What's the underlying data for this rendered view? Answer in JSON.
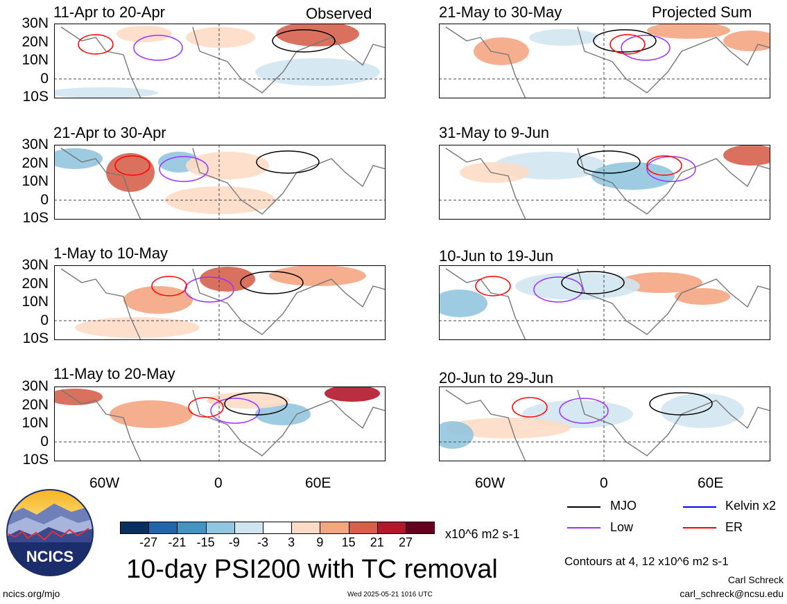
{
  "panels": [
    {
      "title": "11-Apr to 20-Apr",
      "tag": "Observed"
    },
    {
      "title": "21-Apr to 30-Apr",
      "tag": ""
    },
    {
      "title": "1-May to 10-May",
      "tag": ""
    },
    {
      "title": "11-May to 20-May",
      "tag": ""
    },
    {
      "title": "21-May to 30-May",
      "tag": "Projected Sum"
    },
    {
      "title": "31-May to 9-Jun",
      "tag": ""
    },
    {
      "title": "10-Jun to 19-Jun",
      "tag": ""
    },
    {
      "title": "20-Jun to 29-Jun",
      "tag": ""
    }
  ],
  "lat_labels": [
    "30N",
    "20N",
    "10N",
    "0",
    "10S"
  ],
  "lon_labels": [
    "60W",
    "0",
    "60E"
  ],
  "colorbar": {
    "labels": [
      "-27",
      "-21",
      "-15",
      "-9",
      "-3",
      "3",
      "9",
      "15",
      "21",
      "27"
    ],
    "colors": [
      "#0a2f5c",
      "#2166ac",
      "#4393c3",
      "#92c5de",
      "#d1e5f0",
      "#ffffff",
      "#fddbc7",
      "#f4a582",
      "#d6604d",
      "#b2182b",
      "#67001f"
    ],
    "units": "x10^6 m2 s-1"
  },
  "legend": {
    "items": [
      {
        "label": "MJO",
        "color": "#000000"
      },
      {
        "label": "Low",
        "color": "#9b30ff"
      },
      {
        "label": "Kelvin x2",
        "color": "#0000ff"
      },
      {
        "label": "ER",
        "color": "#ff0000"
      }
    ],
    "contours": "Contours at 4, 12 x10^6 m2 s-1"
  },
  "title": "10-day PSI200 with TC removal",
  "logo_text": "NCICS",
  "footer": {
    "url": "ncics.org/mjo",
    "timestamp": "Wed 2025-05-21 1016 UTC",
    "author": "Carl Schreck",
    "email": "carl_schreck@ncsu.edu"
  }
}
